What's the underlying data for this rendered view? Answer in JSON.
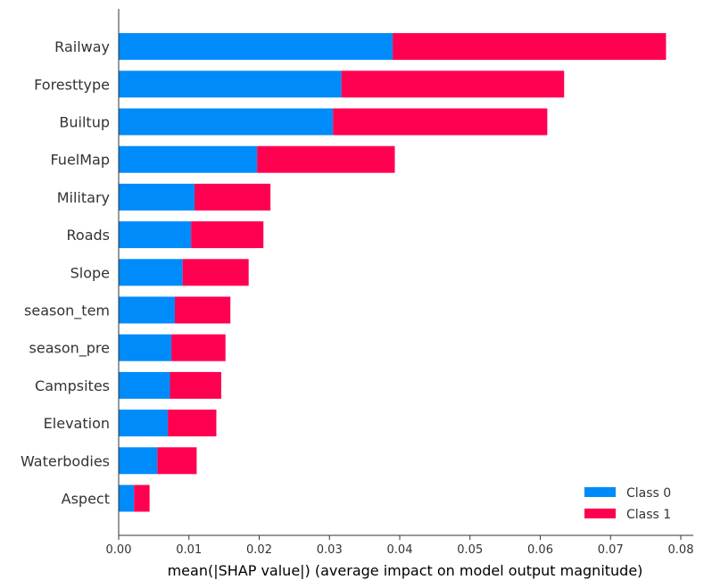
{
  "chart_data": {
    "type": "bar",
    "orientation": "horizontal",
    "stacked": true,
    "categories": [
      "Railway",
      "Foresttype",
      "Builtup",
      "FuelMap",
      "Military",
      "Roads",
      "Slope",
      "season_tem",
      "season_pre",
      "Campsites",
      "Elevation",
      "Waterbodies",
      "Aspect"
    ],
    "series": [
      {
        "name": "Class 0",
        "color": "#008bfb",
        "values": [
          0.039,
          0.0317,
          0.0305,
          0.0197,
          0.0108,
          0.0103,
          0.0091,
          0.008,
          0.0075,
          0.0073,
          0.007,
          0.0055,
          0.0022
        ]
      },
      {
        "name": "Class 1",
        "color": "#ff0051",
        "values": [
          0.0389,
          0.0317,
          0.0305,
          0.0196,
          0.0108,
          0.0103,
          0.0094,
          0.0079,
          0.0077,
          0.0073,
          0.0069,
          0.0056,
          0.0022
        ]
      }
    ],
    "xlabel": "mean(|SHAP value|) (average impact on model output magnitude)",
    "ylabel": "",
    "xlim": [
      0,
      0.08
    ],
    "xticks": [
      "0.00",
      "0.01",
      "0.02",
      "0.03",
      "0.04",
      "0.05",
      "0.06",
      "0.07",
      "0.08"
    ],
    "legend": {
      "position": "bottom-right",
      "entries": [
        "Class 0",
        "Class 1"
      ]
    },
    "grid": false
  }
}
